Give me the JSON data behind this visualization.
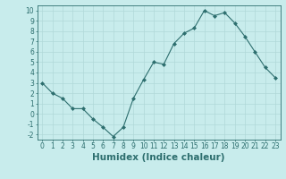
{
  "x": [
    0,
    1,
    2,
    3,
    4,
    5,
    6,
    7,
    8,
    9,
    10,
    11,
    12,
    13,
    14,
    15,
    16,
    17,
    18,
    19,
    20,
    21,
    22,
    23
  ],
  "y": [
    3,
    2,
    1.5,
    0.5,
    0.5,
    -0.5,
    -1.3,
    -2.2,
    -1.3,
    1.5,
    3.3,
    5,
    4.8,
    6.8,
    7.8,
    8.3,
    10,
    9.5,
    9.8,
    8.8,
    7.5,
    6,
    4.5,
    3.5
  ],
  "line_color": "#2d6e6e",
  "marker": "D",
  "marker_size": 2,
  "bg_color": "#c8ecec",
  "grid_color": "#b0d8d8",
  "xlabel": "Humidex (Indice chaleur)",
  "xlim": [
    -0.5,
    23.5
  ],
  "ylim": [
    -2.5,
    10.5
  ],
  "yticks": [
    -2,
    -1,
    0,
    1,
    2,
    3,
    4,
    5,
    6,
    7,
    8,
    9,
    10
  ],
  "xticks": [
    0,
    1,
    2,
    3,
    4,
    5,
    6,
    7,
    8,
    9,
    10,
    11,
    12,
    13,
    14,
    15,
    16,
    17,
    18,
    19,
    20,
    21,
    22,
    23
  ],
  "tick_fontsize": 5.5,
  "xlabel_fontsize": 7.5,
  "linewidth": 0.8
}
